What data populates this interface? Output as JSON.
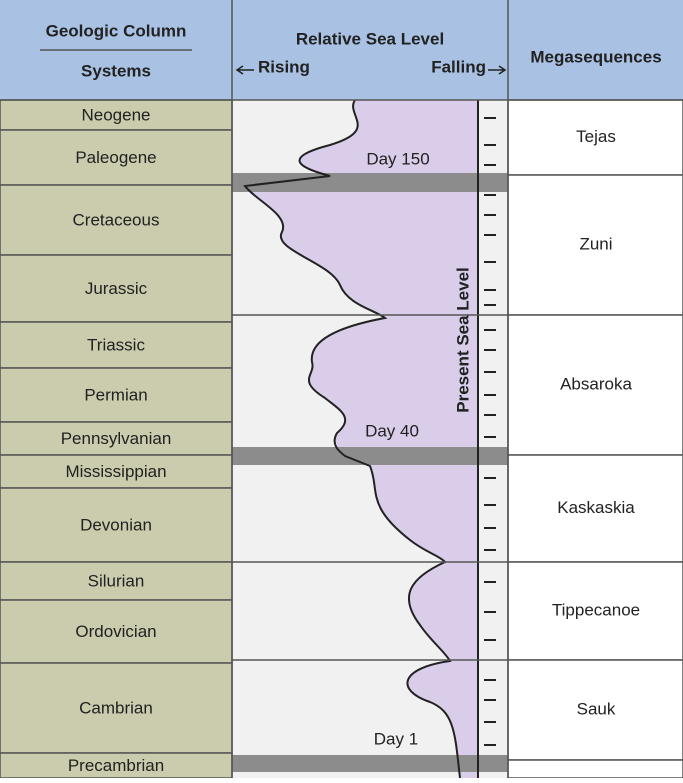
{
  "header": {
    "geologic_column": "Geologic Column",
    "systems": "Systems",
    "sea_level": "Relative Sea Level",
    "rising": "Rising",
    "falling": "Falling",
    "megasequences": "Megasequences"
  },
  "systems": [
    "Neogene",
    "Paleogene",
    "Cretaceous",
    "Jurassic",
    "Triassic",
    "Permian",
    "Pennsylvanian",
    "Mississippian",
    "Devonian",
    "Silurian",
    "Ordovician",
    "Cambrian",
    "Precambrian"
  ],
  "curve_labels": {
    "day_150": "Day 150",
    "day_40": "Day 40",
    "day_1": "Day 1",
    "present": "Present Sea Level"
  },
  "megasequences": [
    "Tejas",
    "Zuni",
    "Absaroka",
    "Kaskaskia",
    "Tippecanoe",
    "Sauk"
  ]
}
